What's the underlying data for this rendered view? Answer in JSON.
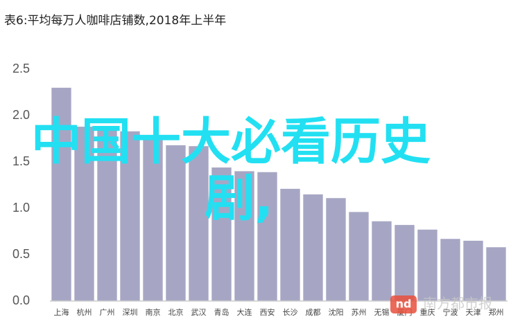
{
  "chart_data": {
    "type": "bar",
    "title": "表6:平均每万人咖啡店铺数,2018年上半年",
    "categories": [
      "上海",
      "杭州",
      "广州",
      "深圳",
      "南京",
      "北京",
      "武汉",
      "青岛",
      "大连",
      "西安",
      "长沙",
      "成都",
      "沈阳",
      "苏州",
      "无锡",
      "厦门",
      "重庆",
      "宁波",
      "天津",
      "郑州"
    ],
    "values": [
      2.3,
      1.88,
      1.85,
      1.83,
      1.74,
      1.68,
      1.67,
      1.44,
      1.4,
      1.39,
      1.21,
      1.15,
      1.11,
      0.96,
      0.86,
      0.82,
      0.77,
      0.67,
      0.65,
      0.58
    ],
    "color": "#a6a6c4",
    "ylim": [
      0,
      2.5
    ],
    "yticks": [
      {
        "value": 0,
        "label": "0.0"
      },
      0.5,
      {
        "value": 1,
        "label": "1.0"
      },
      1.5,
      {
        "value": 2,
        "label": "2.0"
      },
      2.5
    ],
    "grid": false,
    "overlay_text": [
      "中国十大必看历史",
      "剧,"
    ],
    "watermark": {
      "logo": "nd",
      "text": "南方都市报"
    }
  }
}
